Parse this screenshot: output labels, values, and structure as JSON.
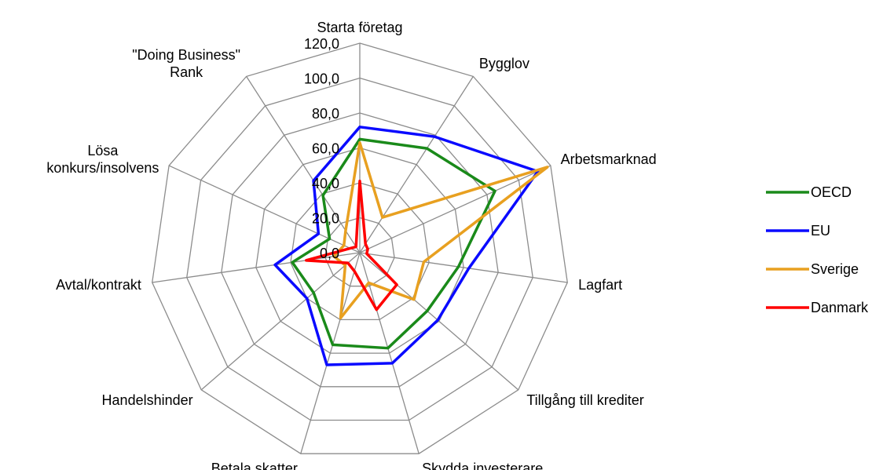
{
  "chart_data": {
    "type": "radar",
    "categories": [
      "Starta företag",
      "Bygglov",
      "Arbetsmarknad",
      "Lagfart",
      "Tillgång till krediter",
      "Skydda investerare",
      "Betala skatter",
      "Handelshinder",
      "Avtal/kontrakt",
      "Lösa\nkonkurs/insolvens",
      "\"Doing Business\"\nRank"
    ],
    "series": [
      {
        "name": "OECD",
        "color": "#1a8a1a",
        "values": [
          65,
          71,
          85,
          57,
          51,
          57,
          55,
          35,
          39,
          19,
          39
        ]
      },
      {
        "name": "EU",
        "color": "#0a0aff",
        "values": [
          72,
          79,
          112,
          63,
          59,
          66,
          67,
          40,
          49,
          26,
          49
        ]
      },
      {
        "name": "Sverige",
        "color": "#e8a020",
        "values": [
          63,
          24,
          118,
          37,
          41,
          18,
          39,
          11,
          15,
          10,
          15
        ]
      },
      {
        "name": "Danmark",
        "color": "#ff0000",
        "values": [
          41,
          6,
          5,
          4,
          28,
          34,
          11,
          9,
          31,
          6,
          4
        ]
      }
    ],
    "ylim": [
      0,
      120
    ],
    "yticks": [
      {
        "value": 0,
        "label": "0,0"
      },
      {
        "value": 20,
        "label": "20,0"
      },
      {
        "value": 40,
        "label": "40,0"
      },
      {
        "value": 60,
        "label": "60,0"
      },
      {
        "value": 80,
        "label": "80,0"
      },
      {
        "value": 100,
        "label": "100,0"
      },
      {
        "value": 120,
        "label": "120,0"
      }
    ],
    "grid": true,
    "legend": "right"
  }
}
